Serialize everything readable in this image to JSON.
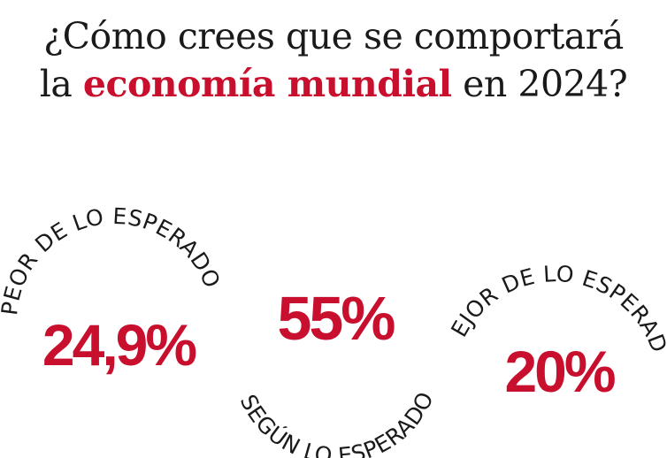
{
  "title": {
    "part1": "¿Cómo crees que se comportará",
    "part2": "la ",
    "highlight": "economía mundial",
    "part3": " en 2024?"
  },
  "colors": {
    "accent": "#c8102e",
    "text": "#1a1a1a"
  },
  "chart_data": {
    "type": "table",
    "title": "¿Cómo crees que se comportará la economía mundial en 2024?",
    "categories": [
      "PEOR DE LO ESPERADO",
      "SEGÚN LO ESPERADO",
      "MEJOR DE LO ESPERADO"
    ],
    "values": [
      24.9,
      55,
      20
    ],
    "value_labels": [
      "24,9%",
      "55%",
      "20%"
    ],
    "unit": "%"
  }
}
